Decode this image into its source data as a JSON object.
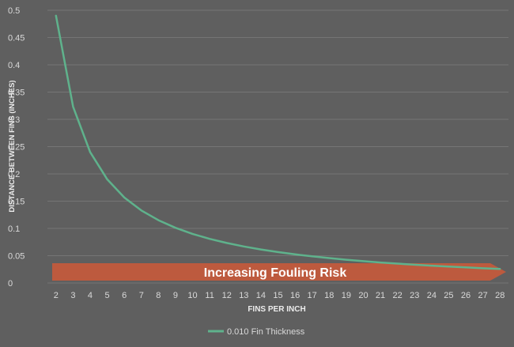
{
  "colors": {
    "background": "#5f5f5f",
    "gridline": "#757575",
    "tick_text": "#d9d9d9",
    "series": "#5fb28c",
    "arrow_fill": "#c4593b",
    "arrow_text": "#ffffff"
  },
  "chart_data": {
    "type": "line",
    "title": "",
    "xlabel": "FINS PER INCH",
    "ylabel": "DISTANCE BETWEEN FINS (INCHES)",
    "x": [
      2,
      3,
      4,
      5,
      6,
      7,
      8,
      9,
      10,
      11,
      12,
      13,
      14,
      15,
      16,
      17,
      18,
      19,
      20,
      21,
      22,
      23,
      24,
      25,
      26,
      27,
      28
    ],
    "series": [
      {
        "name": "0.010 Fin Thickness",
        "values": [
          0.49,
          0.3233,
          0.24,
          0.19,
          0.1567,
          0.1329,
          0.115,
          0.1011,
          0.09,
          0.0809,
          0.0733,
          0.0669,
          0.0614,
          0.0567,
          0.0525,
          0.0488,
          0.0456,
          0.0426,
          0.04,
          0.0376,
          0.0355,
          0.0335,
          0.0317,
          0.03,
          0.0285,
          0.027,
          0.0257
        ]
      }
    ],
    "ylim": [
      0,
      0.5
    ],
    "yticks": [
      0,
      0.05,
      0.1,
      0.15,
      0.2,
      0.25,
      0.3,
      0.35,
      0.4,
      0.45,
      0.5
    ],
    "ytick_labels": [
      "0",
      "0.05",
      "0.1",
      "0.15",
      "0.2",
      "0.25",
      "0.3",
      "0.35",
      "0.4",
      "0.45",
      "0.5"
    ],
    "grid": true,
    "legend_position": "bottom",
    "annotations": [
      {
        "type": "arrow",
        "text": "Increasing Fouling Risk",
        "direction": "right"
      }
    ]
  }
}
